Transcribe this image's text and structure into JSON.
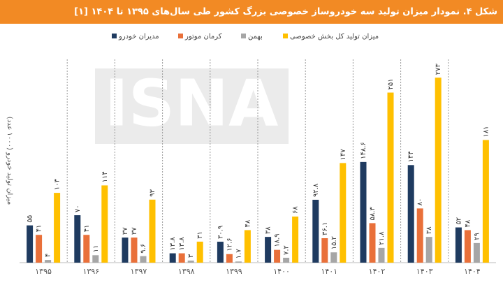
{
  "chart_data": {
    "type": "bar",
    "title": "شکل ۴. نمودار میزان تولید سه خودروساز خصوصی بزرگ کشور طی سال‌های ۱۳۹۵ تا ۱۴۰۴ [۱]",
    "y_label": "میزان تولید خودرو (۱۰۰۰ عدد)",
    "watermark": "ISNA",
    "categories": [
      "۱۳۹۵",
      "۱۳۹۶",
      "۱۳۹۷",
      "۱۳۹۸",
      "۱۳۹۹",
      "۱۴۰۰",
      "۱۴۰۱",
      "۱۴۰۲",
      "۱۴۰۳",
      "۱۴۰۴"
    ],
    "series": [
      {
        "name": "مدیران خودرو",
        "color": "#1f3b60",
        "values": [
          55,
          70,
          37,
          13.8,
          30.9,
          38,
          92.8,
          148.6,
          144,
          52
        ],
        "value_labels": [
          "۵۵",
          "۷۰",
          "۳۷",
          "۱۳.۸",
          "۳۰.۹",
          "۳۸",
          "۹۲.۸",
          "۱۴۸.۶",
          "۱۴۴",
          "۵۲"
        ]
      },
      {
        "name": "کرمان موتور",
        "color": "#e9703a",
        "values": [
          41,
          41,
          37,
          13.8,
          12.6,
          18.9,
          36.1,
          58.3,
          80,
          48
        ],
        "value_labels": [
          "۴۱",
          "۴۱",
          "۳۷",
          "۱۳.۸",
          "۱۲.۶",
          "۱۸.۹",
          "۳۶.۱",
          "۵۸.۳",
          "۸۰",
          "۴۸"
        ]
      },
      {
        "name": "بهمن",
        "color": "#a6a6a6",
        "values": [
          4,
          11,
          9.6,
          3,
          1.7,
          7.2,
          15.2,
          21.8,
          38,
          29
        ],
        "value_labels": [
          "۴",
          "۱۱",
          "۹.۶",
          "۳",
          "۱.۷",
          "۷.۲",
          "۱۵.۲",
          "۲۱.۸",
          "۳۸",
          "۲۹"
        ]
      },
      {
        "name": "میزان تولید کل بخش خصوصی",
        "color": "#ffc000",
        "values": [
          103,
          114,
          93,
          31,
          48,
          68,
          147,
          251,
          273,
          181
        ],
        "value_labels": [
          "۱۰۳",
          "۱۱۴",
          "۹۳",
          "۳۱",
          "۴۸",
          "۶۸",
          "۱۴۷",
          "۲۵۱",
          "۲۷۳",
          "۱۸۱"
        ]
      }
    ]
  }
}
